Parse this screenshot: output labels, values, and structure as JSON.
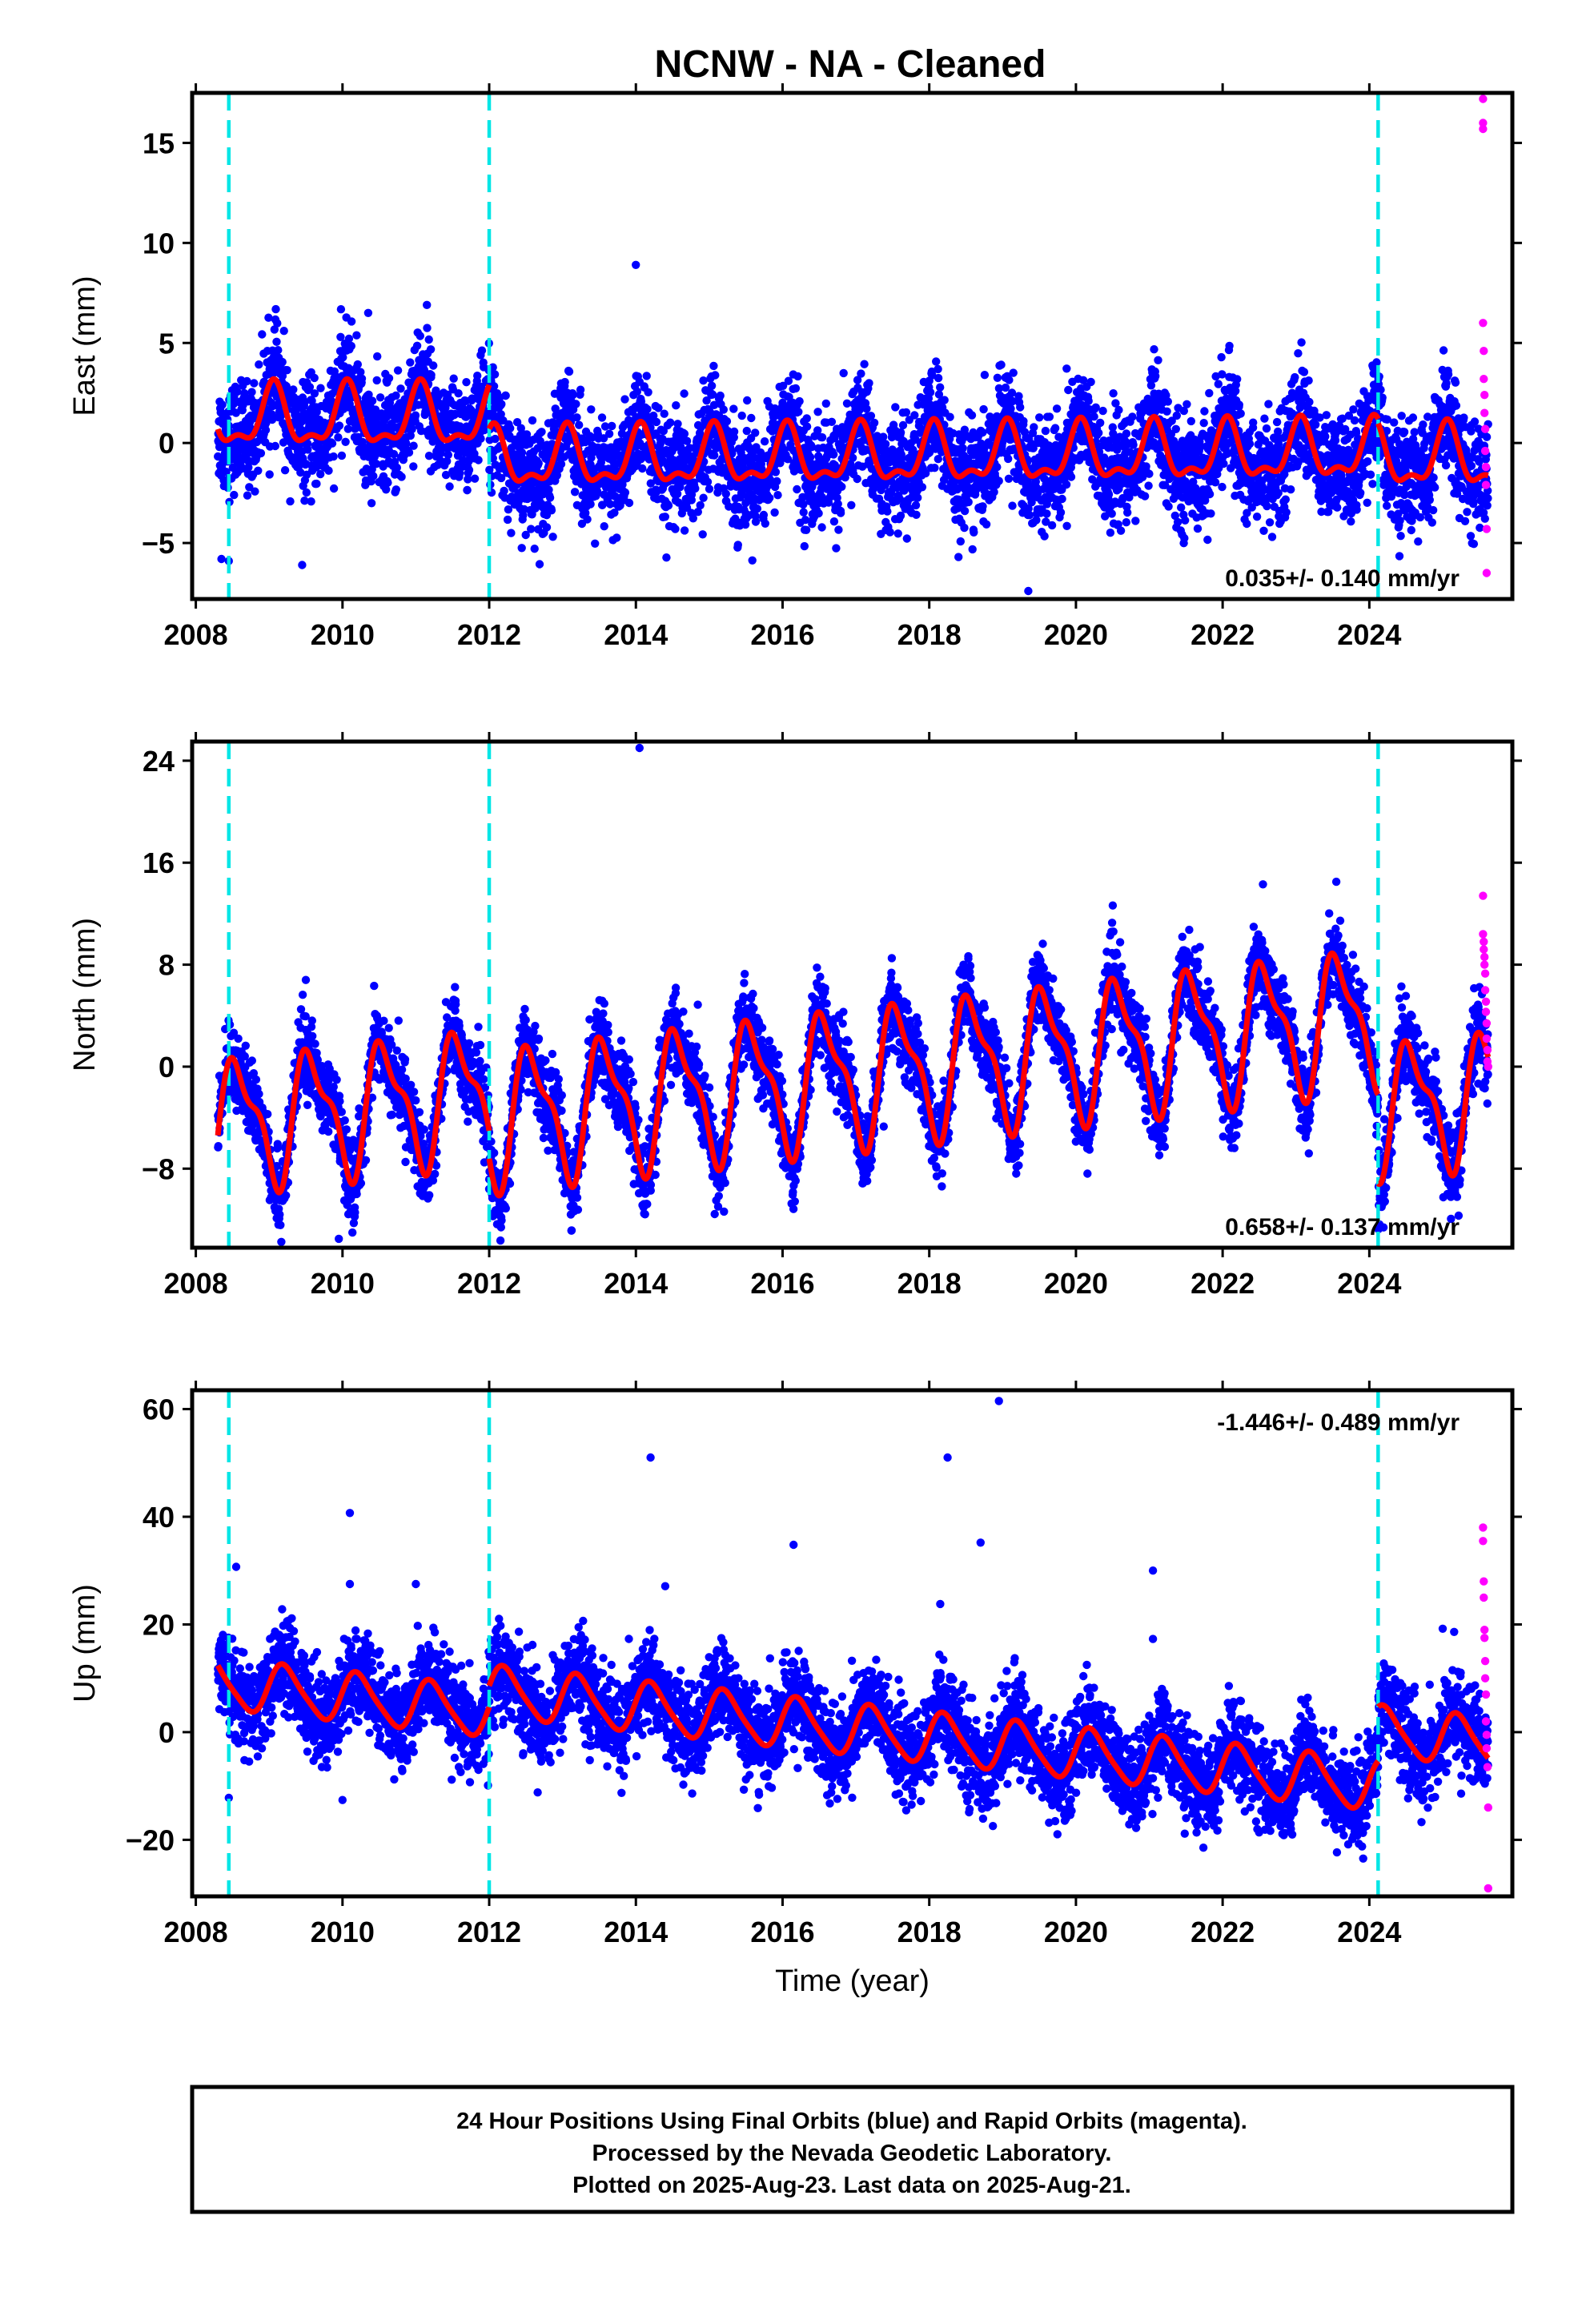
{
  "title": "NCNW  - NA - Cleaned",
  "colors": {
    "final": "#0000ff",
    "rapid": "#ff00ff",
    "model": "#ff0000",
    "event": "#00e6e6",
    "frame": "#000000"
  },
  "chart_data": [
    {
      "type": "scatter",
      "component": "East",
      "ylabel": "East (mm)",
      "xlabel": "",
      "xlim": [
        2007.95,
        2025.95
      ],
      "ylim": [
        -7.8,
        17.5
      ],
      "xticks": [
        2008,
        2010,
        2012,
        2014,
        2016,
        2018,
        2020,
        2022,
        2024
      ],
      "yticks": [
        -5,
        0,
        5,
        10,
        15
      ],
      "rate": "0.035+/- 0.140 mm/yr",
      "rate_position": "bottom-right",
      "events": [
        2008.45,
        2012.0,
        2024.12
      ],
      "model": {
        "segments": [
          {
            "start": 2008.3,
            "end": 2012.0,
            "offset": 1.2,
            "slope": 0.0,
            "annual": 1.4,
            "semiannual": 0.6,
            "phase": 1.2
          },
          {
            "start": 2012.0,
            "end": 2024.12,
            "offset": -0.9,
            "slope": 0.035,
            "annual": 1.3,
            "semiannual": 0.6,
            "phase": 1.2
          },
          {
            "start": 2024.12,
            "end": 2025.62,
            "offset": -0.8,
            "slope": 0.0,
            "annual": 1.4,
            "semiannual": 0.6,
            "phase": 1.2
          }
        ],
        "noise_sd": 1.3
      },
      "outliers": [
        [
          2014.0,
          8.9
        ],
        [
          2019.35,
          -7.4
        ],
        [
          2009.45,
          -6.1
        ],
        [
          2008.35,
          -5.8
        ],
        [
          2008.45,
          -5.9
        ],
        [
          2010.35,
          6.5
        ],
        [
          2011.15,
          6.9
        ]
      ],
      "rapid": [
        [
          2025.55,
          17.2
        ],
        [
          2025.55,
          16.0
        ],
        [
          2025.55,
          15.7
        ],
        [
          2025.55,
          6.0
        ],
        [
          2025.56,
          4.6
        ],
        [
          2025.56,
          3.2
        ],
        [
          2025.57,
          2.4
        ],
        [
          2025.57,
          1.5
        ],
        [
          2025.58,
          0.7
        ],
        [
          2025.58,
          -0.4
        ],
        [
          2025.59,
          -1.2
        ],
        [
          2025.59,
          -2.1
        ],
        [
          2025.6,
          -4.3
        ],
        [
          2025.6,
          -6.5
        ]
      ]
    },
    {
      "type": "scatter",
      "component": "North",
      "ylabel": "North (mm)",
      "xlabel": "",
      "xlim": [
        2007.95,
        2025.95
      ],
      "ylim": [
        -14.2,
        25.5
      ],
      "xticks": [
        2008,
        2010,
        2012,
        2014,
        2016,
        2018,
        2020,
        2022,
        2024
      ],
      "yticks": [
        -8,
        0,
        8,
        16,
        24
      ],
      "rate": "0.658+/- 0.137 mm/yr",
      "rate_position": "bottom-right",
      "events": [
        2008.45,
        2012.0,
        2024.12
      ],
      "model": {
        "segments": [
          {
            "start": 2008.3,
            "end": 2012.0,
            "offset": -4.5,
            "slope": 0.658,
            "annual": 4.6,
            "semiannual": 1.8,
            "phase": 4.2
          },
          {
            "start": 2012.0,
            "end": 2024.12,
            "offset": -4.0,
            "slope": 0.658,
            "annual": 4.9,
            "semiannual": 1.8,
            "phase": 4.2
          },
          {
            "start": 2024.12,
            "end": 2025.62,
            "offset": -3.3,
            "slope": 0.658,
            "annual": 4.6,
            "semiannual": 1.8,
            "phase": 4.2
          }
        ],
        "noise_sd": 1.5
      },
      "outliers": [
        [
          2014.05,
          25.0
        ],
        [
          2012.0,
          -9.6
        ],
        [
          2009.95,
          -13.5
        ],
        [
          2009.5,
          6.8
        ],
        [
          2023.55,
          14.5
        ],
        [
          2022.55,
          14.3
        ]
      ],
      "rapid": [
        [
          2025.55,
          13.4
        ],
        [
          2025.55,
          10.4
        ],
        [
          2025.56,
          9.8
        ],
        [
          2025.56,
          9.2
        ],
        [
          2025.57,
          8.6
        ],
        [
          2025.57,
          8.0
        ],
        [
          2025.58,
          7.3
        ],
        [
          2025.58,
          6.0
        ],
        [
          2025.59,
          5.1
        ],
        [
          2025.59,
          4.3
        ],
        [
          2025.6,
          3.4
        ],
        [
          2025.6,
          2.2
        ],
        [
          2025.61,
          1.3
        ],
        [
          2025.61,
          0.4
        ],
        [
          2025.62,
          0.0
        ]
      ]
    },
    {
      "type": "scatter",
      "component": "Up",
      "ylabel": "Up (mm)",
      "xlabel": "Time (year)",
      "xlim": [
        2007.95,
        2025.95
      ],
      "ylim": [
        -30.5,
        63.5
      ],
      "xticks": [
        2008,
        2010,
        2012,
        2014,
        2016,
        2018,
        2020,
        2022,
        2024
      ],
      "yticks": [
        -20,
        0,
        20,
        40,
        60
      ],
      "rate": "-1.446+/- 0.489 mm/yr",
      "rate_position": "top-right",
      "events": [
        2008.45,
        2012.0,
        2024.12
      ],
      "model": {
        "segments": [
          {
            "start": 2008.3,
            "end": 2012.0,
            "offset": 9.0,
            "slope": -1.446,
            "annual": 4.5,
            "semiannual": 0.8,
            "phase": 0.2
          },
          {
            "start": 2012.0,
            "end": 2024.12,
            "offset": 7.6,
            "slope": -1.446,
            "annual": 4.6,
            "semiannual": 0.8,
            "phase": 0.2
          },
          {
            "start": 2024.12,
            "end": 2025.62,
            "offset": 0.2,
            "slope": -1.446,
            "annual": 4.5,
            "semiannual": 0.8,
            "phase": 0.2
          }
        ],
        "noise_sd": 4.2
      },
      "outliers": [
        [
          2014.2,
          51.0
        ],
        [
          2018.25,
          51.0
        ],
        [
          2018.95,
          61.5
        ],
        [
          2010.1,
          40.7
        ],
        [
          2010.1,
          27.5
        ],
        [
          2016.15,
          34.8
        ],
        [
          2018.7,
          35.2
        ],
        [
          2018.15,
          23.8
        ],
        [
          2021.05,
          30.0
        ],
        [
          2021.05,
          17.3
        ],
        [
          2014.4,
          27.1
        ],
        [
          2011.0,
          27.5
        ],
        [
          2008.55,
          30.7
        ],
        [
          2008.45,
          -12.2
        ],
        [
          2010.0,
          -12.6
        ],
        [
          2025.0,
          19.2
        ]
      ],
      "rapid": [
        [
          2025.55,
          38.0
        ],
        [
          2025.55,
          35.5
        ],
        [
          2025.56,
          28.0
        ],
        [
          2025.56,
          25.0
        ],
        [
          2025.57,
          19.0
        ],
        [
          2025.57,
          17.5
        ],
        [
          2025.58,
          13.2
        ],
        [
          2025.58,
          10.0
        ],
        [
          2025.59,
          7.0
        ],
        [
          2025.59,
          2.0
        ],
        [
          2025.6,
          -0.5
        ],
        [
          2025.6,
          -3.0
        ],
        [
          2025.61,
          -6.5
        ],
        [
          2025.62,
          -14.0
        ],
        [
          2025.62,
          -29.0
        ]
      ]
    }
  ],
  "footer": {
    "line1": "24 Hour Positions Using Final Orbits (blue) and Rapid Orbits (magenta).",
    "line2": "Processed by the Nevada Geodetic Laboratory.",
    "line3": "Plotted on 2025-Aug-23. Last data on 2025-Aug-21."
  }
}
